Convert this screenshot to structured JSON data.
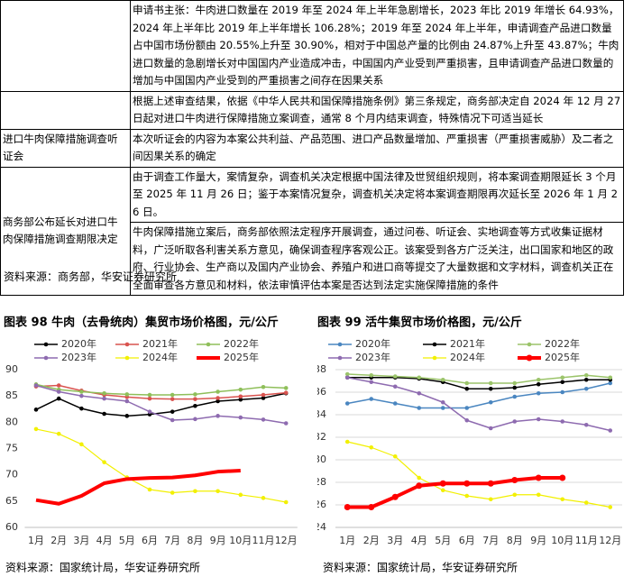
{
  "table": {
    "rows": [
      {
        "content": [
          "申请书主张：牛肉进口数量在 2019 年至 2024 年上半年急剧增长，2023 年比 2019 年增长 64.93%，2024 年上半年比 2019 年上半年增长 106.28%；2019 年至 2024 年上半年，申请调查产品进口数量占中国市场份额由 20.55%上升至 30.90%，相对于中国总产量的比例由 24.87%上升至 43.87%；牛肉进口数量的急剧增长对中国国内产业造成冲击，中国国内产业受到严重损害，且申请调查产品进口数量的增加与中国国内产业受到的严重损害之间存在因果关系"
        ]
      },
      {
        "content": [
          "根据上述审查结果，依据《中华人民共和国保障措施条例》第三条规定，商务部决定自 2024 年 12 月 27 日起对进口牛肉进行保障措施立案调查，通常 8 个月内结束调查，特殊情况下可适当延长"
        ]
      },
      {
        "label": "进口牛肉保障措施调查听证会",
        "content": [
          "本次听证会的内容为本案公共利益、产品范围、进口产品数量增加、严重损害（严重损害威胁）及二者之间因果关系的确定"
        ]
      },
      {
        "label": "商务部公布延长对进口牛肉保障措施调查期限决定",
        "content": [
          "由于调查工作量大，案情复杂，调查机关决定根据中国法律及世贸组织规则，将本案调查期限延长 3 个月至 2025 年 11 月 26 日；鉴于本案情况复杂，调查机关决定将本案调查期限再次延长至 2026 年 1 月 26 日。",
          "牛肉保障措施立案后，商务部依照法定程序开展调查，通过问卷、听证会、实地调查等方式收集证据材料，广泛听取各利害关系方意见，确保调查程序客观公正。该案受到各方广泛关注，出口国家和地区的政府、行业协会、生产商以及国内产业协会、养殖户和进口商等提交了大量数据和文字材料，调查机关正在全面审查各方意见和材料，依法审慎评估本案是否达到法定实施保障措施的条件"
        ]
      }
    ]
  },
  "source": "资料来源：商务部，华安证券研究所",
  "chart_data": [
    {
      "type": "line",
      "title": "图表 98 牛肉（去骨统肉）集贸市场价格图，元/公斤",
      "source": "资料来源：国家统计局，华安证券研究所",
      "categories": [
        "1月",
        "2月",
        "3月",
        "4月",
        "5月",
        "6月",
        "7月",
        "8月",
        "9月",
        "10月",
        "11月",
        "12月"
      ],
      "ylim": [
        60,
        90
      ],
      "yticks": [
        60,
        65,
        70,
        75,
        80,
        85,
        90
      ],
      "grid": false,
      "series": [
        {
          "name": "2020年",
          "color": "#000000",
          "marker": true,
          "width": 1.5,
          "values": [
            82.4,
            84.5,
            82.6,
            81.6,
            81.2,
            81.5,
            82.0,
            83.1,
            84.0,
            84.3,
            84.6,
            85.5
          ]
        },
        {
          "name": "2021年",
          "color": "#d9534f",
          "marker": true,
          "width": 1.5,
          "values": [
            86.8,
            87.0,
            86.0,
            85.2,
            84.8,
            84.5,
            84.4,
            84.4,
            84.6,
            84.9,
            85.2,
            85.6
          ]
        },
        {
          "name": "2022年",
          "color": "#8fbf5a",
          "marker": true,
          "width": 1.5,
          "values": [
            87.2,
            86.2,
            85.8,
            85.5,
            85.3,
            85.2,
            85.2,
            85.3,
            85.8,
            86.2,
            86.7,
            86.5
          ]
        },
        {
          "name": "2023年",
          "color": "#8e6bb0",
          "marker": true,
          "width": 1.5,
          "values": [
            87.0,
            85.8,
            85.0,
            84.5,
            84.0,
            82.0,
            80.4,
            80.6,
            81.2,
            80.9,
            80.5,
            79.8
          ]
        },
        {
          "name": "2024年",
          "color": "#f2f000",
          "marker": true,
          "width": 1.2,
          "values": [
            78.7,
            77.8,
            75.8,
            72.4,
            69.5,
            67.2,
            66.6,
            66.9,
            66.9,
            66.2,
            65.6,
            64.8
          ]
        },
        {
          "name": "2025年",
          "color": "#ff0000",
          "marker": false,
          "width": 4,
          "values": [
            65.2,
            64.5,
            66.0,
            68.4,
            69.2,
            69.4,
            69.5,
            69.9,
            70.6,
            70.8,
            null,
            null
          ]
        }
      ]
    },
    {
      "type": "line",
      "title": "图表 99 活牛集贸市场价格图，元/公斤",
      "source": "资料来源：国家统计局，华安证券研究所",
      "categories": [
        "1月",
        "2月",
        "3月",
        "4月",
        "5月",
        "6月",
        "7月",
        "8月",
        "9月",
        "10月",
        "11月",
        "12月"
      ],
      "ylim": [
        24,
        38
      ],
      "yticks": [
        24,
        26,
        28,
        30,
        32,
        34,
        36,
        38
      ],
      "grid": true,
      "series": [
        {
          "name": "2020年",
          "color": "#4a86c0",
          "marker": true,
          "width": 1.5,
          "values": [
            35.0,
            35.4,
            35.0,
            34.6,
            34.6,
            34.6,
            35.1,
            35.6,
            35.9,
            36.0,
            36.3,
            36.8
          ]
        },
        {
          "name": "2021年",
          "color": "#000000",
          "marker": true,
          "width": 1.5,
          "values": [
            37.3,
            37.3,
            37.3,
            37.2,
            36.9,
            36.3,
            36.3,
            36.4,
            36.7,
            36.9,
            37.1,
            37.1
          ]
        },
        {
          "name": "2022年",
          "color": "#9bc46a",
          "marker": true,
          "width": 1.5,
          "values": [
            37.6,
            37.5,
            37.4,
            37.3,
            37.1,
            36.8,
            36.8,
            36.8,
            37.1,
            37.3,
            37.5,
            37.3
          ]
        },
        {
          "name": "2023年",
          "color": "#8e6bb0",
          "marker": true,
          "width": 1.5,
          "values": [
            37.3,
            36.9,
            36.5,
            35.9,
            35.1,
            33.5,
            32.8,
            33.4,
            33.6,
            33.4,
            33.1,
            32.6
          ]
        },
        {
          "name": "2024年",
          "color": "#f2f000",
          "marker": true,
          "width": 1.2,
          "values": [
            31.6,
            31.1,
            30.3,
            28.4,
            27.3,
            26.8,
            26.5,
            26.9,
            26.9,
            26.5,
            26.2,
            25.8
          ]
        },
        {
          "name": "2025年",
          "color": "#ff0000",
          "marker": true,
          "width": 4,
          "values": [
            25.8,
            25.8,
            26.7,
            27.7,
            27.9,
            27.9,
            27.9,
            28.2,
            28.4,
            28.4,
            null,
            null
          ]
        }
      ]
    }
  ]
}
